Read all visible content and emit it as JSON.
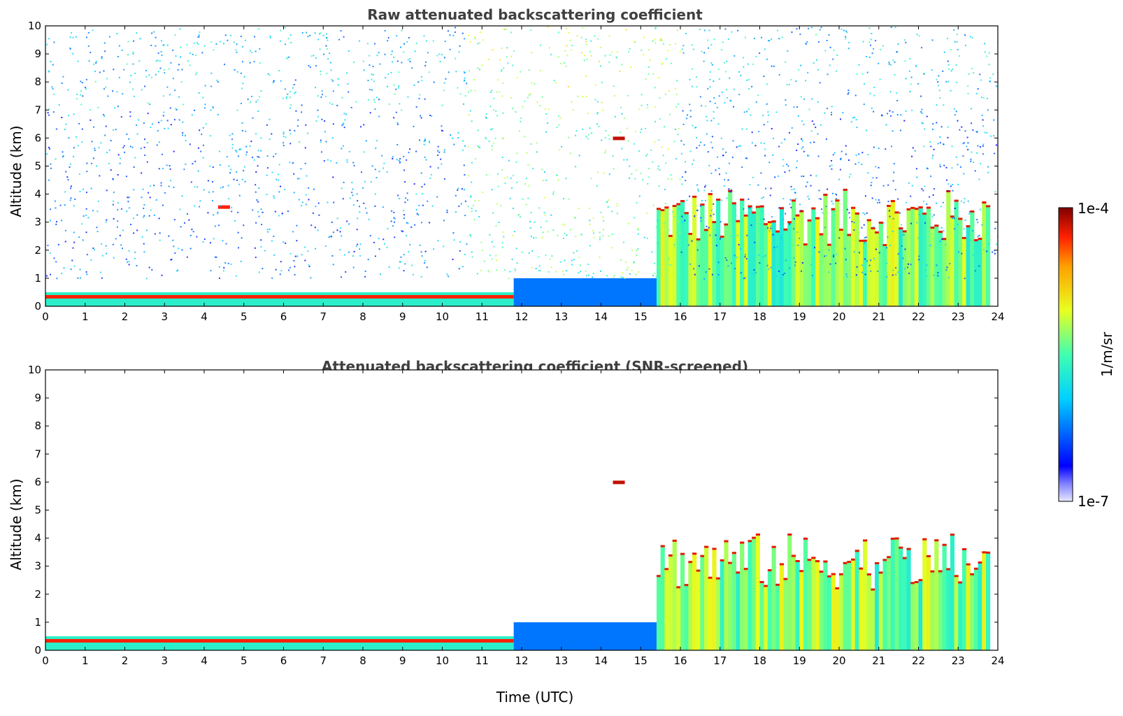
{
  "chart_data": [
    {
      "type": "heatmap",
      "title": "Raw attenuated backscattering coefficient",
      "xlabel": "",
      "ylabel": "Altitude (km)",
      "xlim": [
        0,
        24
      ],
      "ylim": [
        0,
        10
      ],
      "xticks": [
        0,
        1,
        2,
        3,
        4,
        5,
        6,
        7,
        8,
        9,
        10,
        11,
        12,
        13,
        14,
        15,
        16,
        17,
        18,
        19,
        20,
        21,
        22,
        23,
        24
      ],
      "yticks": [
        0,
        1,
        2,
        3,
        4,
        5,
        6,
        7,
        8,
        9,
        10
      ],
      "colorscale": "jet",
      "color_range": [
        "1e-7",
        "1e-4"
      ],
      "features": [
        {
          "kind": "surface_layer",
          "x": [
            0,
            11.8
          ],
          "top_km": 0.5,
          "level": 0.9
        },
        {
          "kind": "boundary_layer",
          "x": [
            11.8,
            15.5
          ],
          "top_km": 1.0,
          "level": 0.25
        },
        {
          "kind": "cloud",
          "x": [
            4.35,
            4.65
          ],
          "top_km": 3.6,
          "level": 0.9
        },
        {
          "kind": "cloud",
          "x": [
            14.3,
            14.6
          ],
          "top_km": 6.05,
          "level": 0.95
        },
        {
          "kind": "dense_layer",
          "x": [
            15.4,
            23.8
          ],
          "top_km": 4.2,
          "level": 0.55
        },
        {
          "kind": "noise",
          "x": [
            0,
            24
          ],
          "top_km": 10,
          "level": 0.45
        }
      ]
    },
    {
      "type": "heatmap",
      "title": "Attenuated backscattering coefficient (SNR-screened)",
      "xlabel": "Time (UTC)",
      "ylabel": "Altitude (km)",
      "xlim": [
        0,
        24
      ],
      "ylim": [
        0,
        10
      ],
      "xticks": [
        0,
        1,
        2,
        3,
        4,
        5,
        6,
        7,
        8,
        9,
        10,
        11,
        12,
        13,
        14,
        15,
        16,
        17,
        18,
        19,
        20,
        21,
        22,
        23,
        24
      ],
      "yticks": [
        0,
        1,
        2,
        3,
        4,
        5,
        6,
        7,
        8,
        9,
        10
      ],
      "colorscale": "jet",
      "color_range": [
        "1e-7",
        "1e-4"
      ],
      "features": [
        {
          "kind": "surface_layer",
          "x": [
            0,
            11.8
          ],
          "top_km": 0.5,
          "level": 0.9
        },
        {
          "kind": "boundary_layer",
          "x": [
            11.8,
            15.5
          ],
          "top_km": 1.0,
          "level": 0.25
        },
        {
          "kind": "cloud",
          "x": [
            14.3,
            14.6
          ],
          "top_km": 6.05,
          "level": 0.95
        },
        {
          "kind": "dense_layer",
          "x": [
            15.4,
            23.8
          ],
          "top_km": 4.2,
          "level": 0.55
        }
      ]
    }
  ],
  "colorbar": {
    "label": "1/m/sr",
    "max_label": "1e-4",
    "min_label": "1e-7"
  }
}
